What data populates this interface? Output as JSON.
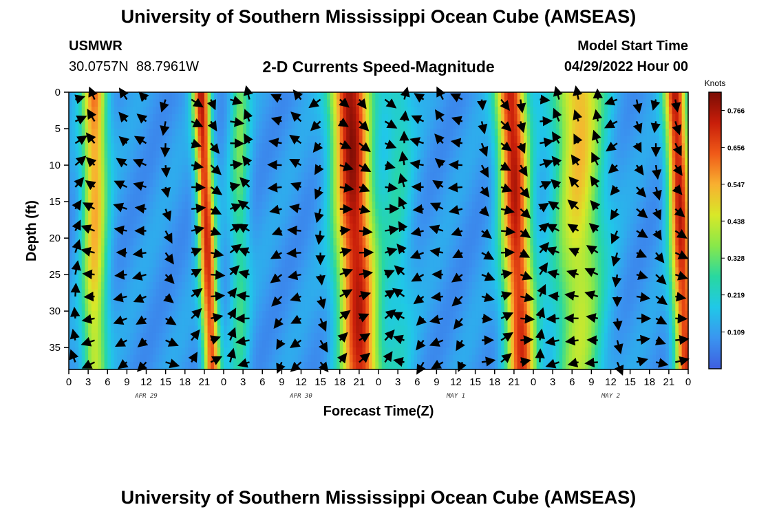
{
  "header": {
    "title": "University of Southern Mississippi Ocean Cube (AMSEAS)",
    "station": "USMWR",
    "coords": "30.0757N  88.7961W",
    "subtitle": "2-D Currents Speed-Magnitude",
    "model_start_label": "Model Start Time",
    "model_start_value": "04/29/2022 Hour 00"
  },
  "footer": {
    "title": "University of Southern Mississippi Ocean Cube (AMSEAS)"
  },
  "colors": {
    "colormap": [
      "#3f5ee0",
      "#3a95f0",
      "#20c8e8",
      "#28d8a0",
      "#88e84a",
      "#d8e828",
      "#f8b030",
      "#f05a18",
      "#c81e0a",
      "#7a0c04"
    ],
    "arrow": "#000000"
  },
  "chart_data": {
    "type": "heatmap",
    "title": "2-D Currents Speed-Magnitude",
    "xlabel": "Forecast Time(Z)",
    "ylabel": "Depth (ft)",
    "xlim": [
      0,
      96
    ],
    "ylim": [
      0,
      38
    ],
    "x_tick_hours": [
      0,
      3,
      6,
      9,
      12,
      15,
      18,
      21,
      24,
      27,
      30,
      33,
      36,
      39,
      42,
      45,
      48,
      51,
      54,
      57,
      60,
      63,
      66,
      69,
      72,
      75,
      78,
      81,
      84,
      87,
      90,
      93,
      96
    ],
    "x_tick_labels": [
      "0",
      "3",
      "6",
      "9",
      "12",
      "15",
      "18",
      "21",
      "0",
      "3",
      "6",
      "9",
      "12",
      "15",
      "18",
      "21",
      "0",
      "3",
      "6",
      "9",
      "12",
      "15",
      "18",
      "21",
      "0",
      "3",
      "6",
      "9",
      "12",
      "15",
      "18",
      "21",
      "0"
    ],
    "y_ticks": [
      0,
      5,
      10,
      15,
      20,
      25,
      30,
      35
    ],
    "y_tick_labels": [
      "0",
      "5",
      "10",
      "15",
      "20",
      "25",
      "30",
      "35"
    ],
    "date_labels": [
      {
        "label": "APR 29",
        "hour": 12
      },
      {
        "label": "APR 30",
        "hour": 36
      },
      {
        "label": "MAY 1",
        "hour": 60
      },
      {
        "label": "MAY 2",
        "hour": 84
      }
    ],
    "colorbar": {
      "unit": "Knots",
      "min": 0.0,
      "max": 0.82,
      "ticks": [
        0.109,
        0.219,
        0.328,
        0.438,
        0.547,
        0.656,
        0.766
      ],
      "tick_labels": [
        "0.109",
        "0.219",
        "0.328",
        "0.438",
        "0.547",
        "0.656",
        "0.766"
      ]
    },
    "speed_peaks": [
      {
        "hour": 4,
        "speed": 0.62,
        "width_h": 1.9,
        "shallow": true
      },
      {
        "hour": 20.5,
        "speed": 0.74,
        "width_h": 1.3,
        "shallow": false
      },
      {
        "hour": 26.5,
        "speed": 0.34,
        "width_h": 1.5,
        "shallow": true
      },
      {
        "hour": 43.5,
        "speed": 0.8,
        "width_h": 3.0,
        "shallow": false
      },
      {
        "hour": 51,
        "speed": 0.25,
        "width_h": 2.5,
        "shallow": true
      },
      {
        "hour": 68.5,
        "speed": 0.76,
        "width_h": 2.3,
        "shallow": false
      },
      {
        "hour": 79,
        "speed": 0.55,
        "width_h": 3.8,
        "shallow": true
      },
      {
        "hour": 94,
        "speed": 0.76,
        "width_h": 1.7,
        "shallow": false
      }
    ],
    "background_speed": 0.1,
    "vector_grid": {
      "hours": [
        1,
        4,
        9,
        12,
        15,
        19,
        22,
        25,
        28,
        33,
        36,
        39,
        42,
        45,
        49,
        52,
        55,
        58,
        61,
        64,
        67,
        70,
        73,
        76,
        79,
        82,
        85,
        88,
        91,
        94
      ],
      "depths_ft": [
        1,
        4,
        7,
        10,
        13,
        16,
        19,
        22,
        25,
        28,
        31,
        34,
        37
      ]
    }
  }
}
